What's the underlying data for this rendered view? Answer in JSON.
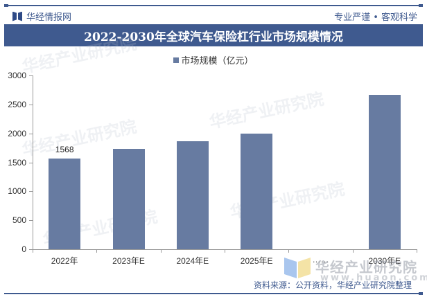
{
  "header": {
    "brand": "华经情报网",
    "tagline": "专业严谨 • 客观科学",
    "title": "2022-2030年全球汽车保险杠行业市场规模情况"
  },
  "legend": {
    "label": "市场规模（亿元）",
    "color": "#677ba1"
  },
  "footer": {
    "source": "资料来源：公开资料，华经产业研究院整理",
    "watermark_text": "华经产业研究院",
    "watermark_url": "www.huaon.com"
  },
  "y_ticks": [
    "0",
    "500",
    "1000",
    "1500",
    "2000",
    "2500",
    "3000"
  ],
  "chart_data": {
    "type": "bar",
    "title": "2022-2030年全球汽车保险杠行业市场规模情况",
    "categories": [
      "2022年",
      "2023年E",
      "2024年E",
      "2025年E",
      "……",
      "2030年E"
    ],
    "series": [
      {
        "name": "市场规模（亿元）",
        "values": [
          1568,
          1735,
          1865,
          1995,
          null,
          2665
        ],
        "color": "#677ba1"
      }
    ],
    "data_labels": {
      "2022年": "1568"
    },
    "xlabel": "",
    "ylabel": "",
    "ylim": [
      0,
      3000
    ],
    "yticks": [
      0,
      500,
      1000,
      1500,
      2000,
      2500,
      3000
    ],
    "grid": false,
    "legend_position": "top"
  }
}
